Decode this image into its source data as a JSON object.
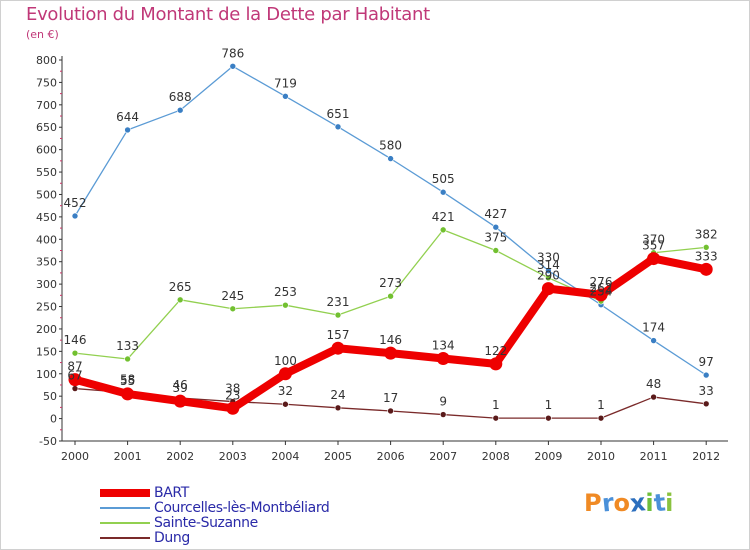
{
  "title": "Evolution du Montant de la Dette par Habitant",
  "subtitle": "(en €)",
  "logo_text": "Proxiti",
  "colors": {
    "title": "#c03878",
    "axis": "#333333",
    "grid": "#cccccc",
    "legend_text": "#2a2aa8"
  },
  "chart_data": {
    "type": "line",
    "title": "Evolution du Montant de la Dette par Habitant",
    "ylabel": "(en €)",
    "xlabel": "",
    "x": [
      "2000",
      "2001",
      "2002",
      "2003",
      "2004",
      "2005",
      "2006",
      "2007",
      "2008",
      "2009",
      "2010",
      "2011",
      "2012"
    ],
    "ylim": [
      -50,
      800
    ],
    "yticks": [
      -50,
      0,
      50,
      100,
      150,
      200,
      250,
      300,
      350,
      400,
      450,
      500,
      550,
      600,
      650,
      700,
      750,
      800
    ],
    "grid": false,
    "legend_position": "bottom",
    "series": [
      {
        "name": "BART",
        "color": "#ee0000",
        "marker": "#dd0000",
        "width": 8,
        "values": [
          87,
          55,
          39,
          23,
          100,
          157,
          146,
          134,
          122,
          290,
          276,
          357,
          333
        ]
      },
      {
        "name": "Courcelles-lès-Montbéliard",
        "color": "#5b9bd5",
        "marker": "#3a7fc4",
        "width": 1.3,
        "values": [
          452,
          644,
          688,
          786,
          719,
          651,
          580,
          505,
          427,
          330,
          254,
          174,
          97
        ]
      },
      {
        "name": "Sainte-Suzanne",
        "color": "#92d050",
        "marker": "#72c030",
        "width": 1.3,
        "values": [
          146,
          133,
          265,
          245,
          253,
          231,
          273,
          421,
          375,
          314,
          262,
          370,
          382
        ]
      },
      {
        "name": "Dung",
        "color": "#7a2a2a",
        "marker": "#5a1a1a",
        "width": 1.3,
        "values": [
          67,
          58,
          46,
          38,
          32,
          24,
          17,
          9,
          1,
          1,
          1,
          48,
          33
        ]
      }
    ]
  }
}
